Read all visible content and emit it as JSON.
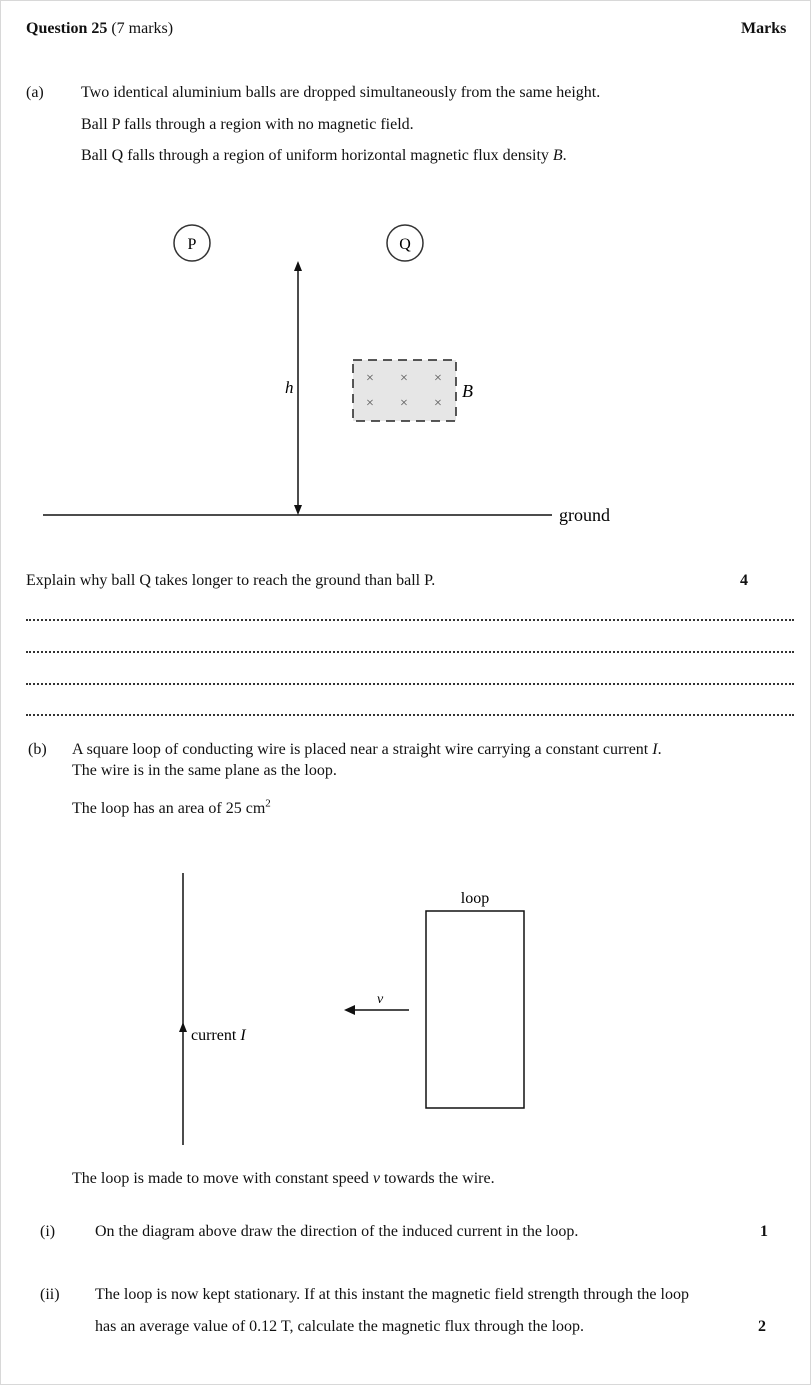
{
  "header": {
    "question_label": "Question 25",
    "question_marks": "(7 marks)",
    "marks_heading": "Marks"
  },
  "part_a": {
    "label": "(a)",
    "lines": [
      "Two identical aluminium balls are dropped simultaneously from the same height.",
      "Ball P falls through a region with no magnetic field.",
      "Ball Q falls through a region of uniform horizontal magnetic flux density "
    ],
    "line3_symbol": "B",
    "line3_end": ".",
    "diagram": {
      "ball_p": "P",
      "ball_q": "Q",
      "height_label": "h",
      "field_label": "B",
      "field_symbol": "×",
      "ground_label": "ground"
    },
    "question": "Explain why ball Q takes longer to reach the ground than ball P.",
    "marks": "4"
  },
  "part_b": {
    "label": "(b)",
    "line1_pre": "A square loop of conducting wire is placed near a straight wire carrying a constant current ",
    "line1_symbol": "I",
    "line1_end": ".",
    "line2": "The wire is in the same plane as the loop.",
    "area_text": "The loop has an area of 25 cm",
    "area_sup": "2",
    "diagram": {
      "loop_label": "loop",
      "velocity_label": "v",
      "current_label": "current ",
      "current_symbol": "I"
    },
    "motion_pre": "The loop is made to move with constant speed ",
    "motion_symbol": "v",
    "motion_post": " towards the wire.",
    "sub_i": {
      "label": "(i)",
      "text": "On the diagram above draw the direction of the induced current in the loop.",
      "marks": "1"
    },
    "sub_ii": {
      "label": "(ii)",
      "line1": "The loop is now kept stationary. If at this instant the magnetic field strength through the loop",
      "line2": "has an average value of 0.12 T, calculate the magnetic flux through the loop.",
      "marks": "2"
    }
  }
}
